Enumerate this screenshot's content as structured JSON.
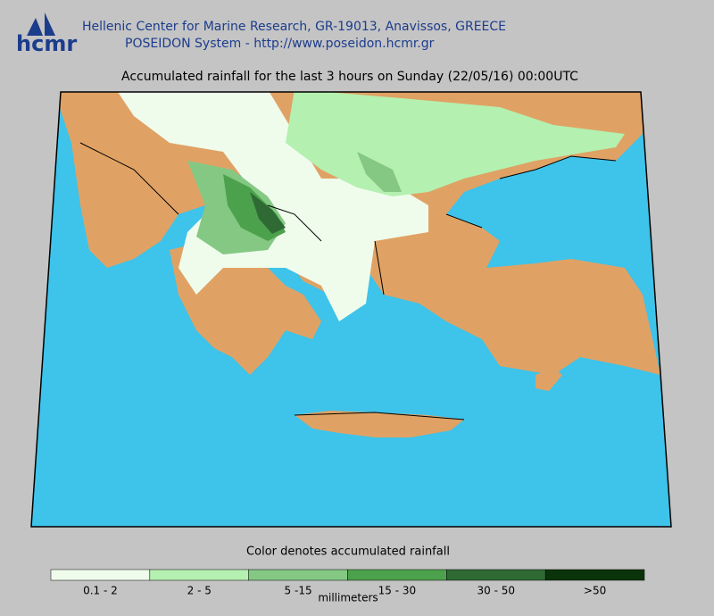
{
  "header": {
    "logo": "hcmr",
    "line1": "Hellenic Center for Marine Research, GR-19013, Anavissos, GREECE",
    "line2": "POSEIDON System - http://www.poseidon.hcmr.gr"
  },
  "map": {
    "title": "Accumulated rainfall for the last 3 hours on Sunday (22/05/16) 00:00UTC",
    "sea_color": "#3ec3ea",
    "land_color": "#e0a264"
  },
  "legend": {
    "title": "Color denotes accumulated rainfall",
    "unit": "millimeters",
    "items": [
      {
        "label": "0.1 - 2",
        "color": "#effcec"
      },
      {
        "label": "2 - 5",
        "color": "#b4f0b0"
      },
      {
        "label": "5 -15",
        "color": "#84c884"
      },
      {
        "label": "15 - 30",
        "color": "#4ca24c"
      },
      {
        "label": "30 - 50",
        "color": "#2f6a34"
      },
      {
        "label": ">50",
        "color": "#0b330b"
      }
    ]
  }
}
